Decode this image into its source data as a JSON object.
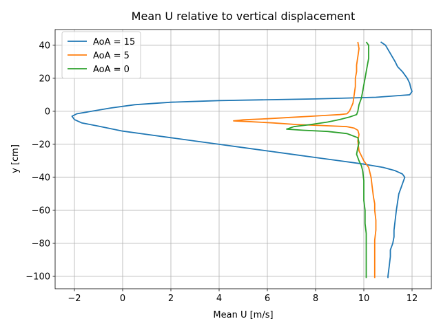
{
  "chart_data": {
    "type": "line",
    "title": "Mean U relative to vertical displacement",
    "xlabel": "Mean U [m/s]",
    "ylabel": "y [cm]",
    "xlim": [
      -2.8,
      12.8
    ],
    "ylim": [
      -107.5,
      49.5
    ],
    "xticks": [
      -2,
      0,
      2,
      4,
      6,
      8,
      10,
      12
    ],
    "yticks": [
      -100,
      -80,
      -60,
      -40,
      -20,
      0,
      20,
      40
    ],
    "grid": true,
    "legend_position": "top-left",
    "series": [
      {
        "name": "AoA = 15",
        "color": "#1f77b4",
        "points": [
          [
            10.7,
            42
          ],
          [
            10.9,
            40
          ],
          [
            11.1,
            35
          ],
          [
            11.3,
            30
          ],
          [
            11.4,
            27
          ],
          [
            11.6,
            24
          ],
          [
            11.8,
            20
          ],
          [
            11.9,
            17
          ],
          [
            11.95,
            14
          ],
          [
            12.0,
            12
          ],
          [
            11.9,
            10
          ],
          [
            10.5,
            8.5
          ],
          [
            8,
            7.5
          ],
          [
            6,
            7
          ],
          [
            4,
            6.5
          ],
          [
            2,
            5.5
          ],
          [
            0.5,
            4
          ],
          [
            -0.5,
            2
          ],
          [
            -1.3,
            0
          ],
          [
            -1.9,
            -1.5
          ],
          [
            -2.1,
            -3
          ],
          [
            -2.0,
            -5
          ],
          [
            -1.7,
            -7
          ],
          [
            -1.0,
            -9
          ],
          [
            0,
            -12
          ],
          [
            1,
            -14
          ],
          [
            2,
            -16
          ],
          [
            3,
            -18
          ],
          [
            4,
            -20
          ],
          [
            5,
            -22
          ],
          [
            6,
            -24
          ],
          [
            7,
            -26
          ],
          [
            8,
            -28
          ],
          [
            9,
            -30
          ],
          [
            10,
            -32
          ],
          [
            10.8,
            -34
          ],
          [
            11.3,
            -36
          ],
          [
            11.6,
            -38
          ],
          [
            11.7,
            -40
          ],
          [
            11.65,
            -42
          ],
          [
            11.55,
            -46
          ],
          [
            11.45,
            -50
          ],
          [
            11.4,
            -55
          ],
          [
            11.35,
            -60
          ],
          [
            11.3,
            -66
          ],
          [
            11.25,
            -72
          ],
          [
            11.25,
            -76
          ],
          [
            11.2,
            -80
          ],
          [
            11.1,
            -84
          ],
          [
            11.1,
            -88
          ],
          [
            11.05,
            -94
          ],
          [
            11.0,
            -100
          ],
          [
            11.0,
            -101
          ]
        ]
      },
      {
        "name": "AoA = 5",
        "color": "#ff7f0e",
        "points": [
          [
            9.75,
            42
          ],
          [
            9.8,
            38
          ],
          [
            9.75,
            33
          ],
          [
            9.7,
            28
          ],
          [
            9.7,
            24
          ],
          [
            9.65,
            20
          ],
          [
            9.65,
            15
          ],
          [
            9.6,
            10
          ],
          [
            9.55,
            5
          ],
          [
            9.45,
            1.5
          ],
          [
            9.4,
            0
          ],
          [
            9.3,
            -1.5
          ],
          [
            9.0,
            -2
          ],
          [
            8.4,
            -2.5
          ],
          [
            7.8,
            -3
          ],
          [
            7,
            -3.7
          ],
          [
            6,
            -4.5
          ],
          [
            5,
            -5.2
          ],
          [
            4.6,
            -5.8
          ],
          [
            5.2,
            -6.2
          ],
          [
            6.2,
            -7
          ],
          [
            7.2,
            -8
          ],
          [
            8.2,
            -8.6
          ],
          [
            9.3,
            -9.3
          ],
          [
            9.6,
            -10.2
          ],
          [
            9.75,
            -11.5
          ],
          [
            9.8,
            -14
          ],
          [
            9.75,
            -18
          ],
          [
            9.8,
            -24
          ],
          [
            10.0,
            -30
          ],
          [
            10.2,
            -34
          ],
          [
            10.3,
            -40
          ],
          [
            10.35,
            -46
          ],
          [
            10.4,
            -52
          ],
          [
            10.45,
            -56
          ],
          [
            10.45,
            -60
          ],
          [
            10.5,
            -66
          ],
          [
            10.5,
            -72
          ],
          [
            10.45,
            -78
          ],
          [
            10.45,
            -84
          ],
          [
            10.45,
            -90
          ],
          [
            10.45,
            -96
          ],
          [
            10.45,
            -100
          ],
          [
            10.45,
            -101
          ]
        ]
      },
      {
        "name": "AoA = 0",
        "color": "#2ca02c",
        "points": [
          [
            10.1,
            42
          ],
          [
            10.2,
            40
          ],
          [
            10.2,
            36
          ],
          [
            10.2,
            32
          ],
          [
            10.15,
            28
          ],
          [
            10.1,
            24
          ],
          [
            10.05,
            20
          ],
          [
            10.0,
            16
          ],
          [
            9.95,
            12
          ],
          [
            9.9,
            8
          ],
          [
            9.8,
            4
          ],
          [
            9.75,
            0
          ],
          [
            9.7,
            -2
          ],
          [
            9.4,
            -3.5
          ],
          [
            9.0,
            -5
          ],
          [
            8.5,
            -6.5
          ],
          [
            7.8,
            -8
          ],
          [
            7.1,
            -9.3
          ],
          [
            6.8,
            -10.8
          ],
          [
            7.5,
            -11.5
          ],
          [
            8.5,
            -12.2
          ],
          [
            9.3,
            -13.5
          ],
          [
            9.75,
            -16
          ],
          [
            9.8,
            -19
          ],
          [
            9.75,
            -22
          ],
          [
            9.7,
            -26
          ],
          [
            9.8,
            -30
          ],
          [
            9.9,
            -33
          ],
          [
            9.95,
            -36
          ],
          [
            10.0,
            -42
          ],
          [
            10.0,
            -48
          ],
          [
            10.0,
            -54
          ],
          [
            10.05,
            -60
          ],
          [
            10.05,
            -68
          ],
          [
            10.1,
            -74
          ],
          [
            10.1,
            -80
          ],
          [
            10.1,
            -86
          ],
          [
            10.1,
            -92
          ],
          [
            10.1,
            -98
          ],
          [
            10.1,
            -101
          ]
        ]
      }
    ]
  }
}
